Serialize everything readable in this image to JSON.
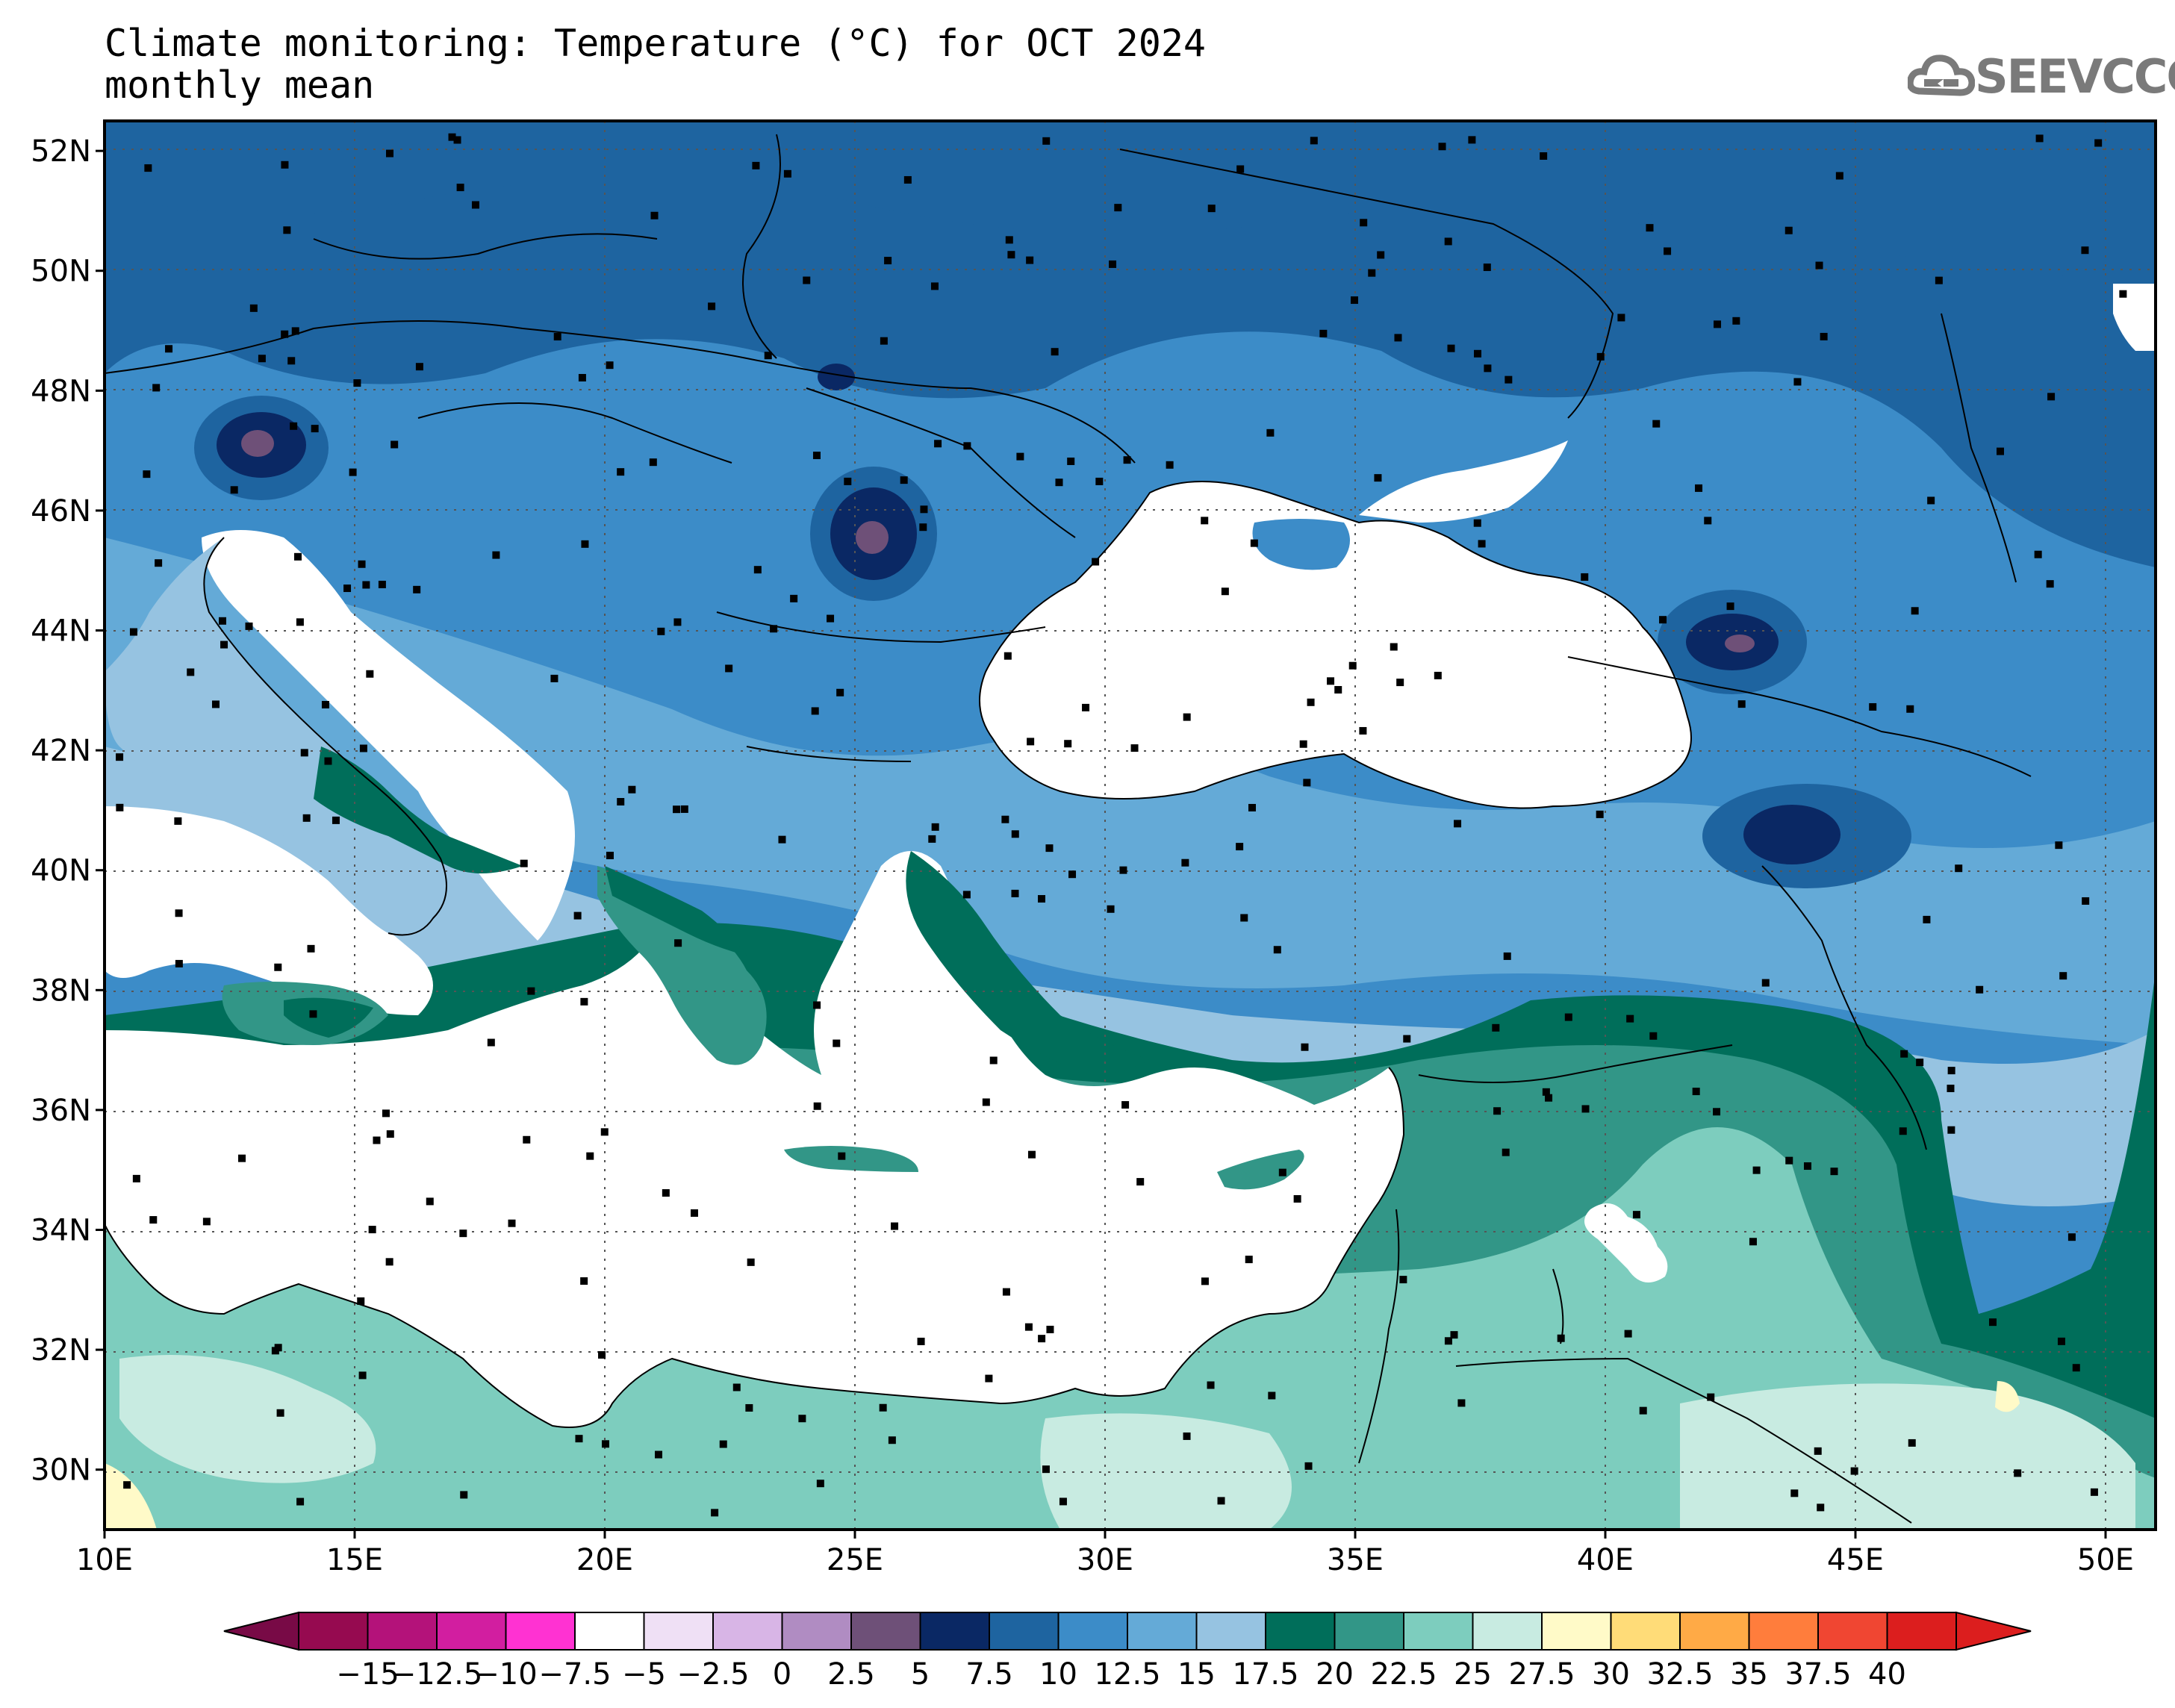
{
  "header": {
    "title_line1": "Climate monitoring: Temperature (°C) for OCT 2024",
    "title_line2": "monthly mean",
    "logo_text": "SEEVCCC",
    "logo_icon": "cloud-icon"
  },
  "map": {
    "lat_labels": [
      "52N",
      "50N",
      "48N",
      "46N",
      "44N",
      "42N",
      "40N",
      "38N",
      "36N",
      "34N",
      "32N",
      "30N"
    ],
    "lon_labels": [
      "10E",
      "15E",
      "20E",
      "25E",
      "30E",
      "35E",
      "40E",
      "45E",
      "50E"
    ],
    "lat_range": [
      29,
      52.5
    ],
    "lon_range": [
      10,
      51
    ],
    "grid": true
  },
  "colorbar": {
    "labels": [
      "−15",
      "−12.5",
      "−10",
      "−7.5",
      "−5",
      "−2.5",
      "0",
      "2.5",
      "5",
      "7.5",
      "10",
      "12.5",
      "15",
      "17.5",
      "20",
      "22.5",
      "25",
      "27.5",
      "30",
      "32.5",
      "35",
      "37.5",
      "40"
    ],
    "colors": [
      "#960a50",
      "#b4127a",
      "#d21ea0",
      "#ff32d2",
      "#ffffff",
      "#efe0f5",
      "#d8b5e6",
      "#b08cc2",
      "#6e5078",
      "#0a2864",
      "#1e64a0",
      "#3c8cc8",
      "#64aad7",
      "#96c3e1",
      "#006e5a",
      "#329687",
      "#7dcdbe",
      "#c8ebe1",
      "#fffac8",
      "#ffdc78",
      "#ffaa46",
      "#ff7d3c",
      "#f04632",
      "#dc1e1e"
    ],
    "endpoint_colors": {
      "low": "#780a46",
      "high": "#dc1e1e"
    }
  },
  "colors": {
    "sea": "#ffffff",
    "cold_north": "#1e64a0",
    "mid": "#3c8cc8",
    "light_blue": "#64aad7",
    "pale_blue": "#96c3e1",
    "teal_dark": "#006e5a",
    "teal_mid": "#329687",
    "teal_light": "#7dcdbe",
    "mint": "#c8ebe1",
    "cold_core": "#0a2864",
    "coldest": "#6e5078"
  }
}
